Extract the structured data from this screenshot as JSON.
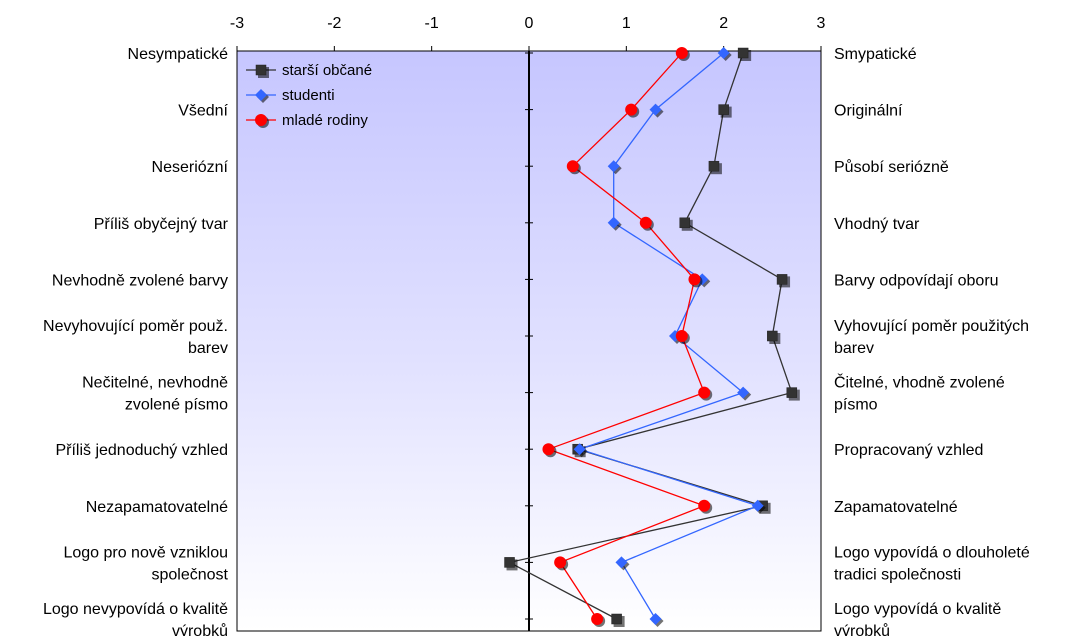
{
  "chart_data": {
    "type": "line",
    "orientation": "horizontal-values",
    "xlim": [
      -3,
      3
    ],
    "x_ticks": [
      "-3",
      "-2",
      "-1",
      "0",
      "1",
      "2",
      "3"
    ],
    "grid": false,
    "legend_position": "top-left",
    "rows": [
      {
        "left": [
          "Nesympatické"
        ],
        "right": [
          "Smypatické"
        ]
      },
      {
        "left": [
          "Všední"
        ],
        "right": [
          "Originální"
        ]
      },
      {
        "left": [
          "Neseriózní"
        ],
        "right": [
          "Působí seriózně"
        ]
      },
      {
        "left": [
          "Příliš obyčejný tvar"
        ],
        "right": [
          "Vhodný tvar"
        ]
      },
      {
        "left": [
          "Nevhodně zvolené barvy"
        ],
        "right": [
          "Barvy odpovídají oboru"
        ]
      },
      {
        "left": [
          "Nevyhovující poměr použ.",
          "barev"
        ],
        "right": [
          "Vyhovující poměr použitých",
          "barev"
        ]
      },
      {
        "left": [
          "Nečitelné, nevhodně",
          "zvolené písmo"
        ],
        "right": [
          "Čitelné, vhodně zvolené",
          "písmo"
        ]
      },
      {
        "left": [
          "Příliš jednoduchý vzhled"
        ],
        "right": [
          "Propracovaný vzhled"
        ]
      },
      {
        "left": [
          "Nezapamatovatelné"
        ],
        "right": [
          "Zapamatovatelné"
        ]
      },
      {
        "left": [
          "Logo pro nově vzniklou",
          "společnost"
        ],
        "right": [
          "Logo vypovídá o dlouholeté",
          "tradici společnosti"
        ]
      },
      {
        "left": [
          "Logo nevypovídá o kvalitě",
          "výrobků"
        ],
        "right": [
          "Logo vypovídá o kvalitě",
          "výrobků"
        ]
      }
    ],
    "series": [
      {
        "name": "starší občané",
        "color": "#333333",
        "marker": "square",
        "values": [
          2.2,
          2.0,
          1.9,
          1.6,
          2.6,
          2.5,
          2.7,
          0.5,
          2.4,
          -0.2,
          0.9
        ]
      },
      {
        "name": "studenti",
        "color": "#3366ff",
        "marker": "diamond",
        "values": [
          2.0,
          1.3,
          0.87,
          0.87,
          1.78,
          1.5,
          2.2,
          0.52,
          2.35,
          0.95,
          1.3
        ]
      },
      {
        "name": "mladé rodiny",
        "color": "#ff0000",
        "marker": "circle",
        "values": [
          1.57,
          1.05,
          0.45,
          1.2,
          1.7,
          1.57,
          1.8,
          0.2,
          1.8,
          0.32,
          0.7
        ]
      }
    ]
  }
}
